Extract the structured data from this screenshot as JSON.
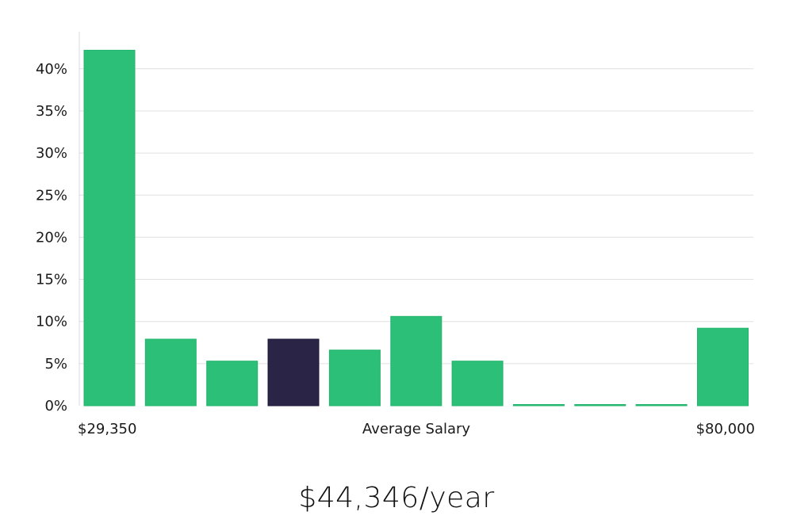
{
  "chart_data": {
    "type": "bar",
    "categories": [
      "1",
      "2",
      "3",
      "4",
      "5",
      "6",
      "7",
      "8",
      "9",
      "10",
      "11"
    ],
    "values": [
      42.2,
      7.9,
      5.3,
      7.9,
      6.6,
      10.6,
      5.3,
      0,
      0,
      0,
      9.2
    ],
    "highlight_index": 3,
    "ylim": [
      0,
      44
    ],
    "yticks": [
      0,
      5,
      10,
      15,
      20,
      25,
      30,
      35,
      40
    ],
    "ytick_labels": [
      "0%",
      "5%",
      "10%",
      "15%",
      "20%",
      "25%",
      "30%",
      "35%",
      "40%"
    ],
    "xlabel_left": "$29,350",
    "xlabel_center": "Average Salary",
    "xlabel_right": "$80,000",
    "grid": true,
    "colors": {
      "bar": "#2bbf77",
      "highlight": "#2a2546",
      "grid": "#e0e0e0",
      "axis": "#d9d9d9"
    }
  },
  "headline": "$44,346/year"
}
